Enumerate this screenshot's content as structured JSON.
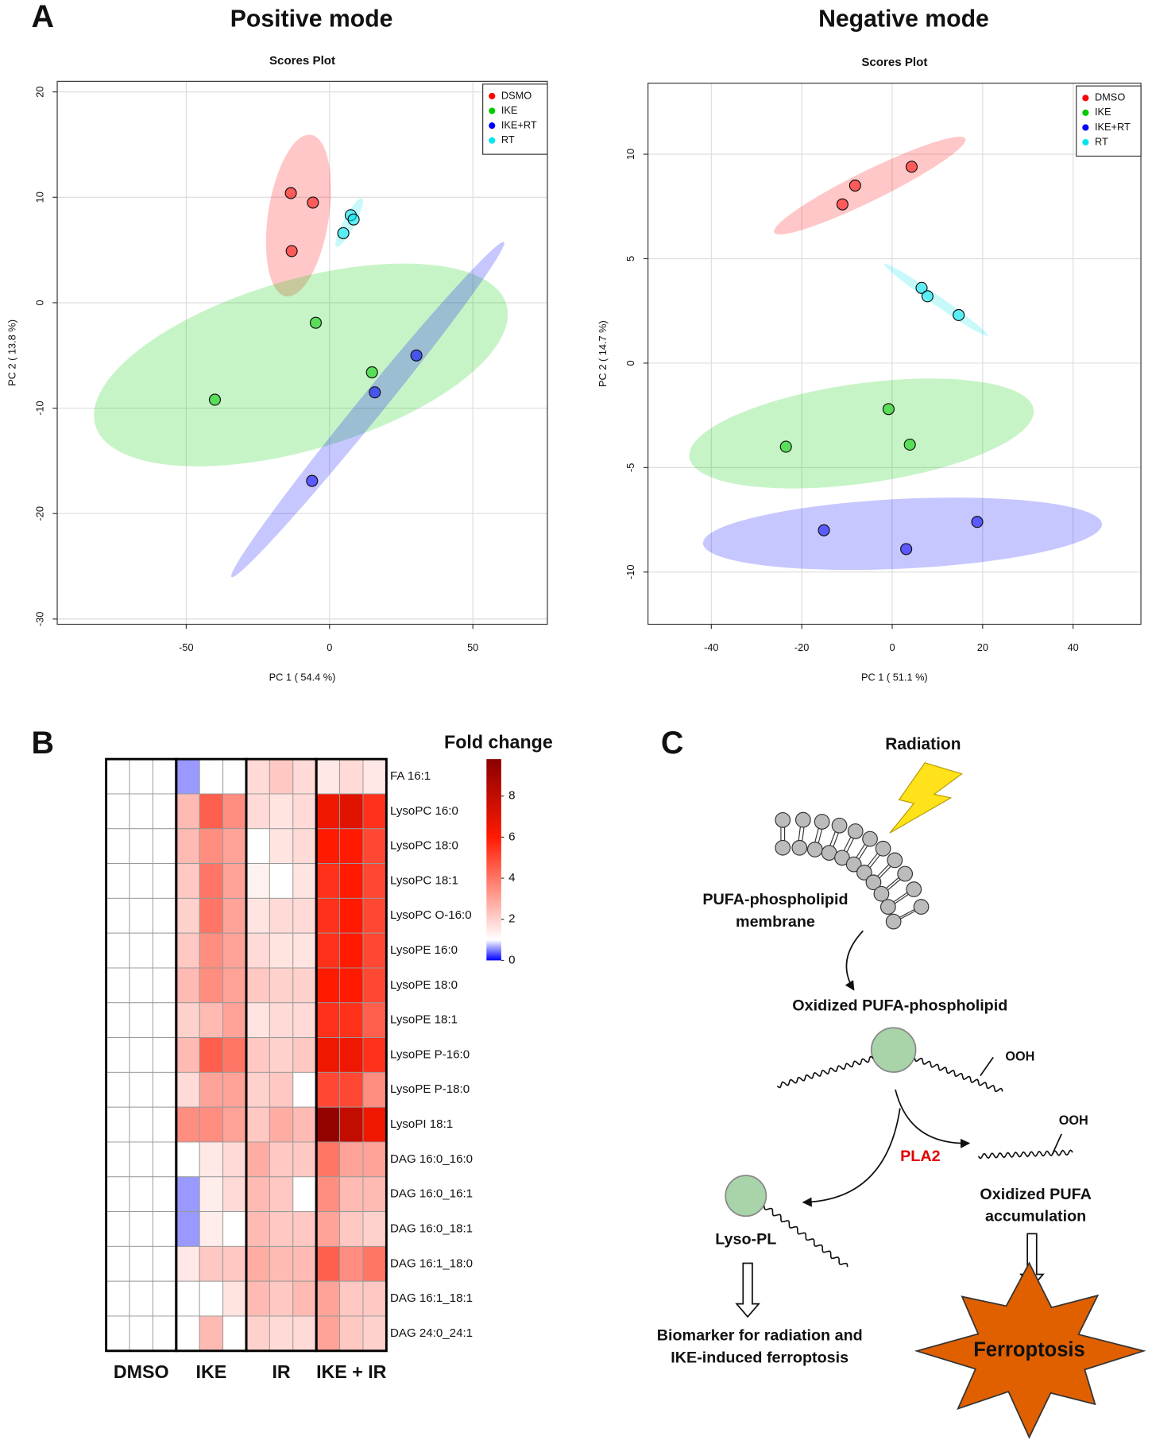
{
  "panels": {
    "a": "A",
    "b": "B",
    "c": "C"
  },
  "chart_data": [
    {
      "type": "scatter",
      "heading": "Positive mode",
      "title": "Scores Plot",
      "xlabel": "PC 1 ( 54.4 %)",
      "ylabel": "PC 2 ( 13.8 %)",
      "xlim": [
        -95,
        76
      ],
      "ylim": [
        -30.5,
        21
      ],
      "xticks": [
        -50,
        0,
        50
      ],
      "yticks": [
        -30,
        -20,
        -10,
        0,
        10,
        20
      ],
      "grid": true,
      "legend": "top-right",
      "series": [
        {
          "name": "DSMO",
          "color": "#ff0000",
          "x": [
            -13.5,
            -5.8,
            -13.2
          ],
          "values": [
            10.4,
            9.5,
            4.9
          ]
        },
        {
          "name": "IKE",
          "color": "#00cc00",
          "x": [
            -4.8,
            -40,
            14.8
          ],
          "values": [
            -1.9,
            -9.2,
            -6.6
          ]
        },
        {
          "name": "IKE+RT",
          "color": "#0000ff",
          "x": [
            30.3,
            15.8,
            -6.1
          ],
          "values": [
            -5.0,
            -8.5,
            -16.9
          ]
        },
        {
          "name": "RT",
          "color": "#00e5ee",
          "x": [
            7.4,
            8.4,
            4.8
          ],
          "values": [
            8.3,
            7.9,
            6.6
          ]
        }
      ]
    },
    {
      "type": "scatter",
      "heading": "Negative mode",
      "title": "Scores Plot",
      "xlabel": "PC 1 ( 51.1 %)",
      "ylabel": "PC 2 ( 14.7 %)",
      "xlim": [
        -54,
        55
      ],
      "ylim": [
        -12.5,
        13.4
      ],
      "xticks": [
        -40,
        -20,
        0,
        20,
        40
      ],
      "yticks": [
        -10,
        -5,
        0,
        5,
        10
      ],
      "grid": true,
      "legend": "top-right",
      "series": [
        {
          "name": "DMSO",
          "color": "#ff0000",
          "x": [
            -11.0,
            -8.2,
            4.3
          ],
          "values": [
            7.6,
            8.5,
            9.4
          ]
        },
        {
          "name": "IKE",
          "color": "#00cc00",
          "x": [
            -0.8,
            -23.5,
            3.9
          ],
          "values": [
            -2.2,
            -4.0,
            -3.9
          ]
        },
        {
          "name": "IKE+RT",
          "color": "#0000ff",
          "x": [
            -15.1,
            3.1,
            18.8
          ],
          "values": [
            -8.0,
            -8.9,
            -7.6
          ]
        },
        {
          "name": "RT",
          "color": "#00e5ee",
          "x": [
            6.5,
            7.8,
            14.7
          ],
          "values": [
            3.6,
            3.2,
            2.3
          ]
        }
      ]
    },
    {
      "type": "heatmap",
      "legend_title": "Fold change",
      "groups": [
        "DMSO",
        "IKE",
        "IR",
        "IKE + IR"
      ],
      "rows": [
        "FA 16:1",
        "LysoPC 16:0",
        "LysoPC 18:0",
        "LysoPC 18:1",
        "LysoPC O-16:0",
        "LysoPE 16:0",
        "LysoPE 18:0",
        "LysoPE 18:1",
        "LysoPE P-16:0",
        "LysoPE P-18:0",
        "LysoPI 18:1",
        "DAG 16:0_16:0",
        "DAG 16:0_16:1",
        "DAG 16:0_18:1",
        "DAG 16:1_18:0",
        "DAG 16:1_18:1",
        "DAG 24:0_24:1"
      ],
      "values": [
        [
          1,
          1,
          1,
          0.6,
          1,
          1,
          1.8,
          2.2,
          1.8,
          1.5,
          1.8,
          1.5
        ],
        [
          1,
          1,
          1,
          2.5,
          4.5,
          3.5,
          1.8,
          1.6,
          1.8,
          6.5,
          7,
          5.5
        ],
        [
          1,
          1,
          1,
          2.5,
          3.5,
          3,
          1,
          1.6,
          1.8,
          6,
          6,
          5
        ],
        [
          1,
          1,
          1,
          2.2,
          4,
          3,
          1.3,
          1,
          1.6,
          5.5,
          6,
          5
        ],
        [
          1,
          1,
          1,
          2,
          4,
          3,
          1.6,
          1.8,
          1.8,
          5.5,
          6,
          5
        ],
        [
          1,
          1,
          1,
          2.2,
          3.5,
          3,
          1.8,
          1.6,
          1.6,
          5.5,
          6,
          5
        ],
        [
          1,
          1,
          1,
          2.5,
          3.5,
          3,
          2.2,
          2,
          2,
          6,
          6,
          5
        ],
        [
          1,
          1,
          1,
          2,
          2.5,
          3,
          1.6,
          1.8,
          1.8,
          5.5,
          5.5,
          4.5
        ],
        [
          1,
          1,
          1,
          2.5,
          4.5,
          4,
          2.2,
          2,
          2.2,
          6.5,
          6.5,
          5.5
        ],
        [
          1,
          1,
          1,
          1.8,
          3,
          3,
          2,
          2.2,
          1,
          5,
          5,
          3.5
        ],
        [
          1,
          1,
          1,
          3.5,
          3.5,
          3,
          2.2,
          2.8,
          2.5,
          9.5,
          8,
          6.5
        ],
        [
          1,
          1,
          1,
          1,
          1.5,
          1.8,
          2.8,
          2.2,
          2.2,
          4,
          3,
          3
        ],
        [
          1,
          1,
          1,
          0.6,
          1.4,
          1.8,
          2.5,
          2.2,
          1,
          3.5,
          2.5,
          2.5
        ],
        [
          1,
          1,
          1,
          0.6,
          1.4,
          1,
          2.5,
          2.2,
          2.2,
          3,
          2.2,
          2
        ],
        [
          1,
          1,
          1,
          1.5,
          2.2,
          2.2,
          2.8,
          2.5,
          2.5,
          4.5,
          3.5,
          4
        ],
        [
          1,
          1,
          1,
          1,
          1,
          1.6,
          2.5,
          2.2,
          2.5,
          3,
          2.2,
          2.2
        ],
        [
          1,
          1,
          1,
          1,
          2.5,
          1,
          2,
          1.8,
          1.8,
          3,
          2.2,
          2
        ]
      ],
      "zlim": [
        0,
        9.8
      ],
      "zticks": [
        0,
        2,
        4,
        6,
        8
      ],
      "colorscale": [
        [
          0,
          "#0000ff"
        ],
        [
          1,
          "#ffffff"
        ],
        [
          6,
          "#ff1a00"
        ],
        [
          9.8,
          "#8b0000"
        ]
      ]
    }
  ],
  "diagram": {
    "radiation": "Radiation",
    "membrane": [
      "PUFA-phospholipid",
      "membrane"
    ],
    "oxidized_pl": "Oxidized PUFA-phospholipid",
    "ooh": [
      "OOH",
      "OOH"
    ],
    "enzyme": "PLA2",
    "oxidized_pufa": [
      "Oxidized PUFA",
      "accumulation"
    ],
    "lyso": "Lyso-PL",
    "biomarker": [
      "Biomarker for radiation and",
      "IKE-induced ferroptosis"
    ],
    "outcome": "Ferroptosis"
  }
}
